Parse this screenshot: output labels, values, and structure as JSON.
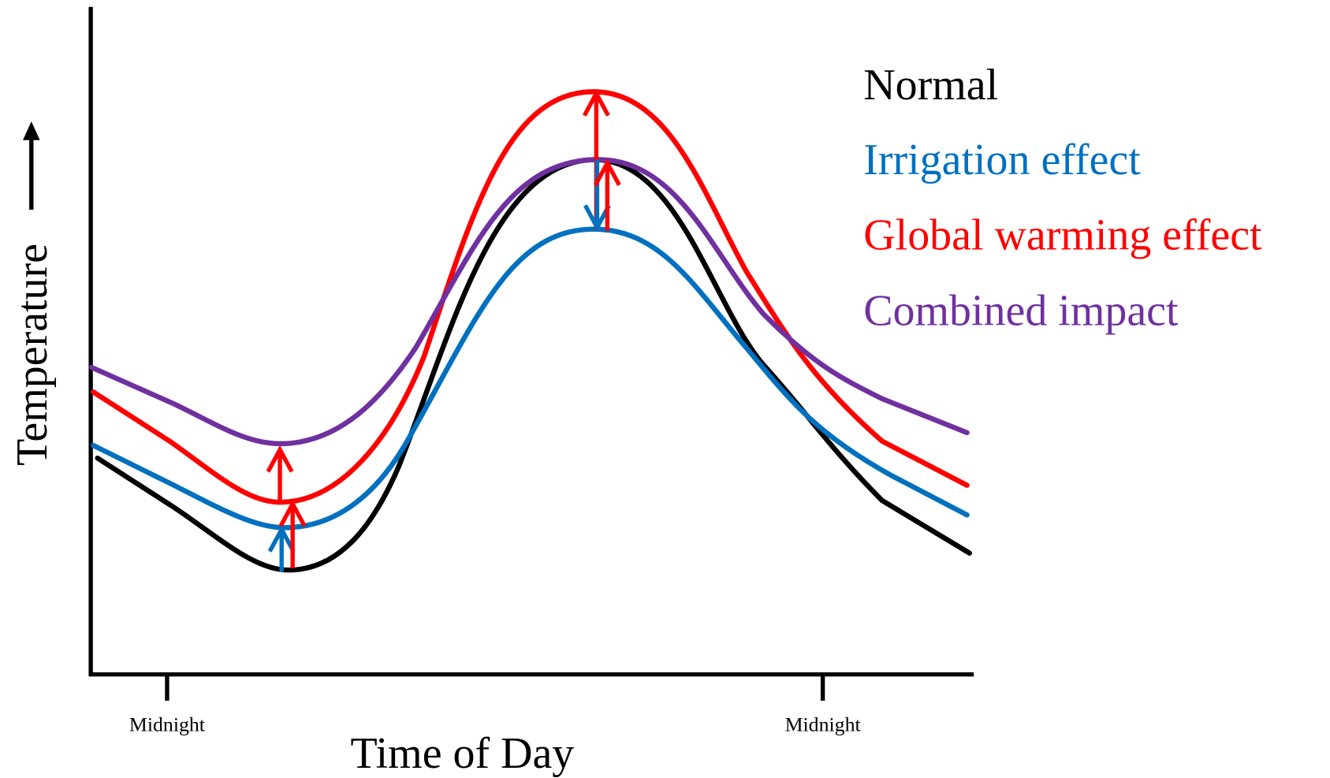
{
  "y_axis": {
    "label": "Temperature"
  },
  "x_axis": {
    "label": "Time of Day",
    "ticks": [
      "Midnight",
      "Midnight"
    ]
  },
  "legend": [
    {
      "label": "Normal"
    },
    {
      "label": "Irrigation effect"
    },
    {
      "label": "Global warming effect"
    },
    {
      "label": "Combined impact"
    }
  ]
}
